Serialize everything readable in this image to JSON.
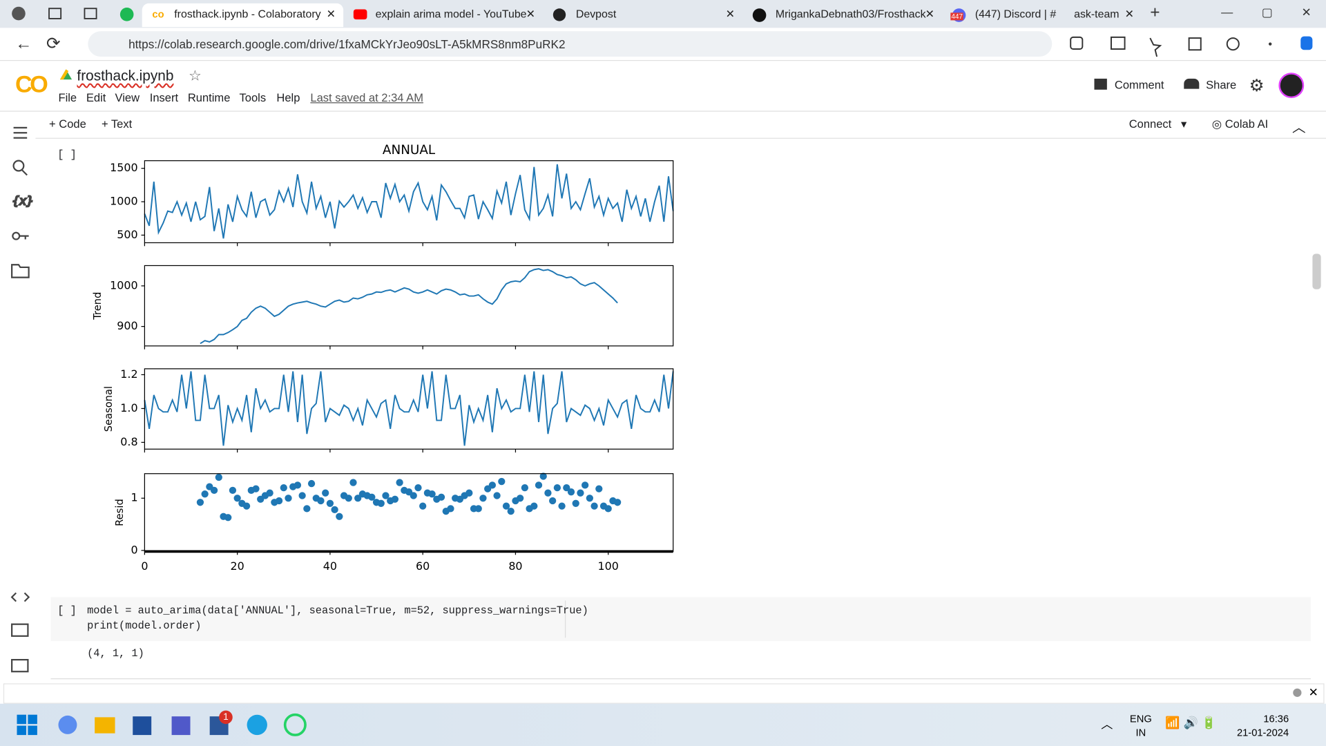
{
  "browser": {
    "tabs": [
      "frosthack.ipynb - Colaboratory",
      "explain arima model - YouTube",
      "Devpost",
      "MrigankaDebnath03/Frosthack",
      "(447) Discord | #",
      "ask-team"
    ],
    "discord_badge": "447",
    "url": "https://colab.research.google.com/drive/1fxaMCkYrJeo90sLT-A5kMRS8nm8PuRK2"
  },
  "colab": {
    "logo": "CO",
    "notebook_name": "frosthack.ipynb",
    "menu": [
      "File",
      "Edit",
      "View",
      "Insert",
      "Runtime",
      "Tools",
      "Help"
    ],
    "last_saved": "Last saved at 2:34 AM",
    "comment": "Comment",
    "share": "Share",
    "add_code": "+ Code",
    "add_text": "+ Text",
    "connect": "Connect",
    "colab_ai": "Colab AI"
  },
  "cells": [
    {
      "bracket": "[ ]"
    },
    {
      "bracket": "[ ]",
      "code": [
        "model = auto_arima(data['ANNUAL'], seasonal=True, m=52, suppress_warnings=True)",
        "print(model.order)"
      ],
      "output": "(4, 1, 1)"
    }
  ],
  "taskbar": {
    "notification": "1",
    "lang": "ENG",
    "region": "IN",
    "time": "16:36",
    "date": "21-01-2024"
  },
  "chart_data": [
    {
      "type": "line",
      "title": "ANNUAL",
      "color": "#1f77b4",
      "xlim": [
        0,
        114
      ],
      "xticks": [
        0,
        20,
        40,
        60,
        80,
        100
      ],
      "ylim": [
        386,
        1614
      ],
      "yticks": [
        500,
        1000,
        1500
      ],
      "x": [
        0,
        1,
        2,
        3,
        4,
        5,
        6,
        7,
        8,
        9,
        10,
        11,
        12,
        13,
        14,
        15,
        16,
        17,
        18,
        19,
        20,
        21,
        22,
        23,
        24,
        25,
        26,
        27,
        28,
        29,
        30,
        31,
        32,
        33,
        34,
        35,
        36,
        37,
        38,
        39,
        40,
        41,
        42,
        43,
        44,
        45,
        46,
        47,
        48,
        49,
        50,
        51,
        52,
        53,
        54,
        55,
        56,
        57,
        58,
        59,
        60,
        61,
        62,
        63,
        64,
        65,
        66,
        67,
        68,
        69,
        70,
        71,
        72,
        73,
        74,
        75,
        76,
        77,
        78,
        79,
        80,
        81,
        82,
        83,
        84,
        85,
        86,
        87,
        88,
        89,
        90,
        91,
        92,
        93,
        94,
        95,
        96,
        97,
        98,
        99,
        100,
        101,
        102,
        103,
        104,
        105,
        106,
        107,
        108,
        109,
        110,
        111,
        112,
        113,
        114
      ],
      "values": [
        820,
        640,
        1300,
        540,
        680,
        860,
        840,
        1000,
        800,
        980,
        700,
        1000,
        730,
        780,
        1220,
        560,
        900,
        450,
        960,
        700,
        1080,
        880,
        780,
        1150,
        760,
        1000,
        1040,
        800,
        880,
        1160,
        1000,
        1200,
        920,
        1410,
        1000,
        830,
        1300,
        900,
        1080,
        760,
        1000,
        600,
        1010,
        920,
        1000,
        1100,
        900,
        1060,
        840,
        1000,
        1000,
        760,
        1280,
        1050,
        1260,
        1000,
        1100,
        860,
        1150,
        1280,
        1000,
        880,
        1080,
        720,
        1250,
        1150,
        1020,
        900,
        900,
        760,
        1080,
        1100,
        740,
        1000,
        880,
        750,
        1160,
        980,
        1300,
        800,
        1120,
        1400,
        880,
        740,
        1520,
        800,
        900,
        1100,
        780,
        1560,
        1050,
        1420,
        900,
        1000,
        880,
        1120,
        1350,
        920,
        1080,
        800,
        1050,
        900,
        980,
        700,
        1180,
        900,
        1080,
        780,
        1050,
        700,
        1000,
        1240,
        700,
        1380,
        860
      ]
    },
    {
      "type": "line",
      "ylabel": "Trend",
      "color": "#1f77b4",
      "xlim": [
        0,
        114
      ],
      "xticks": [
        0,
        20,
        40,
        60,
        80,
        100
      ],
      "ylim": [
        852,
        1050
      ],
      "yticks": [
        900,
        1000
      ],
      "x": [
        12,
        13,
        14,
        15,
        16,
        17,
        18,
        19,
        20,
        21,
        22,
        23,
        24,
        25,
        26,
        27,
        28,
        29,
        30,
        31,
        32,
        33,
        34,
        35,
        36,
        37,
        38,
        39,
        40,
        41,
        42,
        43,
        44,
        45,
        46,
        47,
        48,
        49,
        50,
        51,
        52,
        53,
        54,
        55,
        56,
        57,
        58,
        59,
        60,
        61,
        62,
        63,
        64,
        65,
        66,
        67,
        68,
        69,
        70,
        71,
        72,
        73,
        74,
        75,
        76,
        77,
        78,
        79,
        80,
        81,
        82,
        83,
        84,
        85,
        86,
        87,
        88,
        89,
        90,
        91,
        92,
        93,
        94,
        95,
        96,
        97,
        98,
        99,
        100,
        101,
        102
      ],
      "values": [
        858,
        865,
        862,
        868,
        880,
        880,
        885,
        892,
        900,
        915,
        920,
        935,
        945,
        950,
        945,
        935,
        925,
        930,
        940,
        950,
        955,
        958,
        960,
        962,
        958,
        955,
        950,
        948,
        955,
        962,
        965,
        960,
        962,
        970,
        968,
        972,
        978,
        980,
        985,
        984,
        988,
        990,
        985,
        990,
        995,
        992,
        985,
        982,
        985,
        990,
        985,
        980,
        988,
        992,
        990,
        985,
        978,
        980,
        975,
        975,
        978,
        968,
        960,
        955,
        968,
        990,
        1005,
        1010,
        1012,
        1010,
        1020,
        1035,
        1040,
        1042,
        1038,
        1040,
        1035,
        1028,
        1025,
        1020,
        1022,
        1015,
        1005,
        1000,
        1005,
        1008,
        1000,
        990,
        980,
        970,
        958
      ]
    },
    {
      "type": "line",
      "ylabel": "Seasonal",
      "color": "#1f77b4",
      "xlim": [
        0,
        114
      ],
      "xticks": [
        0,
        20,
        40,
        60,
        80,
        100
      ],
      "ylim": [
        0.76,
        1.235
      ],
      "yticks": [
        0.8,
        {
          "value": 1,
          "label": "1.0"
        },
        1.2
      ],
      "x": [
        0,
        1,
        2,
        3,
        4,
        5,
        6,
        7,
        8,
        9,
        10,
        11,
        12,
        13,
        14,
        15,
        16,
        17,
        18,
        19,
        20,
        21,
        22,
        23,
        24,
        25,
        26,
        27,
        28,
        29,
        30,
        31,
        32,
        33,
        34,
        35,
        36,
        37,
        38,
        39,
        40,
        41,
        42,
        43,
        44,
        45,
        46,
        47,
        48,
        49,
        50,
        51,
        52,
        53,
        54,
        55,
        56,
        57,
        58,
        59,
        60,
        61,
        62,
        63,
        64,
        65,
        66,
        67,
        68,
        69,
        70,
        71,
        72,
        73,
        74,
        75,
        76,
        77,
        78,
        79,
        80,
        81,
        82,
        83,
        84,
        85,
        86,
        87,
        88,
        89,
        90,
        91,
        92,
        93,
        94,
        95,
        96,
        97,
        98,
        99,
        100,
        101,
        102,
        103,
        104,
        105,
        106,
        107,
        108,
        109,
        110,
        111,
        112,
        113,
        114
      ],
      "values": [
        1.05,
        0.88,
        1.08,
        1.0,
        0.98,
        0.98,
        1.05,
        0.98,
        1.2,
        1.0,
        1.22,
        0.93,
        0.93,
        1.2,
        1.0,
        1.0,
        1.08,
        0.78,
        1.02,
        0.92,
        1.0,
        0.93,
        1.08,
        0.86,
        1.12,
        1.0,
        1.05,
        0.98,
        1.0,
        1.0,
        1.2,
        0.98,
        1.22,
        0.92,
        1.2,
        0.85,
        1.0,
        1.03,
        1.22,
        0.92,
        1.0,
        0.98,
        0.96,
        1.02,
        1.0,
        0.93,
        1.0,
        0.9,
        1.05,
        1.0,
        0.95,
        1.03,
        1.05,
        0.88,
        1.08,
        1.0,
        0.98,
        0.98,
        1.05,
        0.98,
        1.2,
        1.0,
        1.22,
        0.93,
        0.93,
        1.2,
        1.0,
        1.0,
        1.08,
        0.78,
        1.02,
        0.92,
        1.0,
        0.93,
        1.08,
        0.86,
        1.12,
        1.0,
        1.05,
        0.98,
        1.0,
        1.0,
        1.2,
        0.98,
        1.22,
        0.92,
        1.2,
        0.85,
        1.0,
        1.03,
        1.22,
        0.92,
        1.0,
        0.98,
        0.96,
        1.02,
        1.0,
        0.93,
        1.0,
        0.9,
        1.05,
        1.0,
        0.95,
        1.03,
        1.05,
        0.88,
        1.08,
        1.0,
        0.98,
        0.98,
        1.05,
        0.98,
        1.2,
        1.0,
        1.22
      ]
    },
    {
      "type": "scatter",
      "ylabel": "Resid",
      "color": "#1f77b4",
      "xlim": [
        0,
        114
      ],
      "xticks": [
        0,
        20,
        40,
        60,
        80,
        100
      ],
      "ylim": [
        -0.02,
        1.47
      ],
      "yticks": [
        0,
        1
      ],
      "x": [
        12,
        13,
        14,
        15,
        16,
        17,
        18,
        19,
        20,
        21,
        22,
        23,
        24,
        25,
        26,
        27,
        28,
        29,
        30,
        31,
        32,
        33,
        34,
        35,
        36,
        37,
        38,
        39,
        40,
        41,
        42,
        43,
        44,
        45,
        46,
        47,
        48,
        49,
        50,
        51,
        52,
        53,
        54,
        55,
        56,
        57,
        58,
        59,
        60,
        61,
        62,
        63,
        64,
        65,
        66,
        67,
        68,
        69,
        70,
        71,
        72,
        73,
        74,
        75,
        76,
        77,
        78,
        79,
        80,
        81,
        82,
        83,
        84,
        85,
        86,
        87,
        88,
        89,
        90,
        91,
        92,
        93,
        94,
        95,
        96,
        97,
        98,
        99,
        100,
        101,
        102
      ],
      "values": [
        0.92,
        1.08,
        1.22,
        1.15,
        1.4,
        0.65,
        0.63,
        1.15,
        1.0,
        0.9,
        0.85,
        1.15,
        1.18,
        0.98,
        1.05,
        1.1,
        0.92,
        0.95,
        1.2,
        1.0,
        1.22,
        1.25,
        1.05,
        0.8,
        1.28,
        1.0,
        0.95,
        1.1,
        0.9,
        0.78,
        0.65,
        1.05,
        1.0,
        1.3,
        1.0,
        1.08,
        1.05,
        1.02,
        0.92,
        0.9,
        1.05,
        0.95,
        0.98,
        1.3,
        1.15,
        1.12,
        1.05,
        1.2,
        0.85,
        1.1,
        1.08,
        0.98,
        1.02,
        0.75,
        0.8,
        1.0,
        0.98,
        1.05,
        1.1,
        0.8,
        0.8,
        1.0,
        1.18,
        1.25,
        1.05,
        1.32,
        0.85,
        0.75,
        0.95,
        1.0,
        1.2,
        0.8,
        0.85,
        1.25,
        1.42,
        1.1,
        0.95,
        1.2,
        0.85,
        1.2,
        1.12,
        0.9,
        1.1,
        1.25,
        1.0,
        0.85,
        1.18,
        0.85,
        0.8,
        0.95,
        0.92
      ]
    }
  ]
}
